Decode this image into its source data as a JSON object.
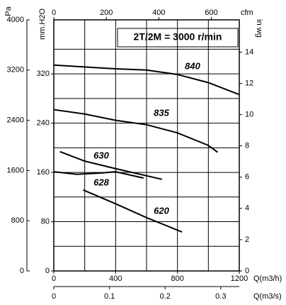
{
  "chart_data": {
    "type": "line",
    "title": "2T/2M = 3000 r/min",
    "x_label": "Q(m3/h)",
    "x2_label": "Q(m3/s)",
    "top_label": "cfm",
    "y_label": "Pa",
    "y2_label": "mm.H2O",
    "y3_label": "in wg",
    "xlim": [
      0,
      1200
    ],
    "xticks": [
      0,
      400,
      800,
      1200
    ],
    "x2lim": [
      0,
      0.3333
    ],
    "x2ticks": [
      0,
      0.1,
      0.2,
      0.3
    ],
    "toplim": [
      0,
      706.3
    ],
    "topticks": [
      0,
      200,
      400,
      600
    ],
    "ylim": [
      0,
      4000
    ],
    "yticks": [
      0,
      800,
      1600,
      2400,
      3200,
      4000
    ],
    "y2lim": [
      0,
      407.7
    ],
    "y2ticks": [
      0,
      80,
      160,
      240,
      320
    ],
    "y3lim": [
      0,
      16.06
    ],
    "y3ticks": [
      0,
      2,
      4,
      6,
      8,
      10,
      12,
      14
    ],
    "grid": true,
    "y2grid": [
      40,
      80,
      120,
      160,
      200,
      240,
      280,
      320,
      360
    ],
    "xgrid": [
      200,
      400,
      600,
      800,
      1000
    ],
    "color": "#000000",
    "series": [
      {
        "name": "840",
        "x": [
          0,
          200,
          400,
          600,
          800,
          1000,
          1200
        ],
        "values": [
          3280,
          3250,
          3220,
          3200,
          3130,
          3000,
          2810
        ]
      },
      {
        "name": "835",
        "x": [
          0,
          200,
          400,
          600,
          800,
          1000,
          1060
        ],
        "values": [
          2570,
          2500,
          2400,
          2330,
          2200,
          2000,
          1890
        ]
      },
      {
        "name": "630",
        "x": [
          40,
          200,
          400,
          700
        ],
        "values": [
          1900,
          1750,
          1630,
          1460
        ]
      },
      {
        "name": "628",
        "x": [
          0,
          150,
          300,
          400,
          580
        ],
        "values": [
          1580,
          1540,
          1560,
          1580,
          1480
        ]
      },
      {
        "name": "620",
        "x": [
          190,
          400,
          600,
          830
        ],
        "values": [
          1290,
          1070,
          850,
          620
        ]
      }
    ]
  }
}
